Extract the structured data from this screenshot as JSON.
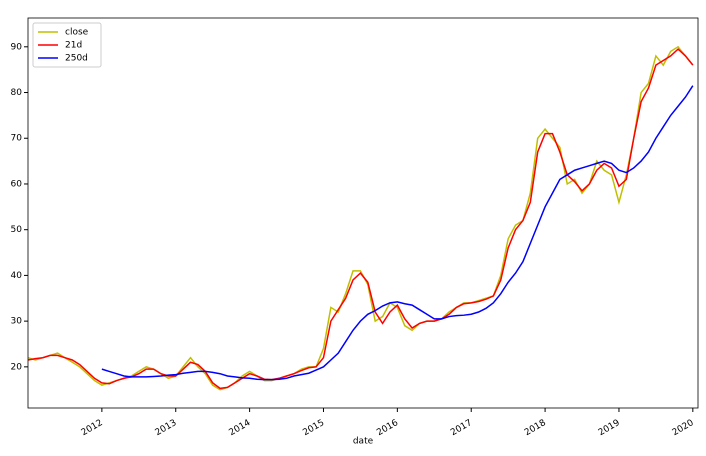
{
  "chart_data": {
    "type": "line",
    "xlabel": "date",
    "x": [
      2011,
      2011.1,
      2011.2,
      2011.3,
      2011.4,
      2011.5,
      2011.6,
      2011.7,
      2011.8,
      2011.9,
      2012,
      2012.1,
      2012.2,
      2012.3,
      2012.4,
      2012.5,
      2012.6,
      2012.7,
      2012.8,
      2012.9,
      2013,
      2013.1,
      2013.2,
      2013.3,
      2013.4,
      2013.5,
      2013.6,
      2013.7,
      2013.8,
      2013.9,
      2014,
      2014.1,
      2014.2,
      2014.3,
      2014.4,
      2014.5,
      2014.6,
      2014.7,
      2014.8,
      2014.9,
      2015,
      2015.1,
      2015.2,
      2015.3,
      2015.4,
      2015.5,
      2015.6,
      2015.7,
      2015.8,
      2015.9,
      2016,
      2016.1,
      2016.2,
      2016.3,
      2016.4,
      2016.5,
      2016.6,
      2016.7,
      2016.8,
      2016.9,
      2017,
      2017.1,
      2017.2,
      2017.3,
      2017.4,
      2017.5,
      2017.6,
      2017.7,
      2017.8,
      2017.9,
      2018,
      2018.1,
      2018.2,
      2018.3,
      2018.4,
      2018.5,
      2018.6,
      2018.7,
      2018.8,
      2018.9,
      2019,
      2019.1,
      2019.2,
      2019.3,
      2019.4,
      2019.5,
      2019.6,
      2019.7,
      2019.8,
      2019.9,
      2020
    ],
    "series": [
      {
        "name": "close",
        "color": "#bfbf00",
        "values": [
          22,
          21.5,
          22,
          22.5,
          23,
          22,
          21,
          20,
          18.5,
          17,
          16,
          16.5,
          17,
          17.5,
          18,
          19,
          20,
          19.5,
          18.5,
          17.5,
          18,
          20,
          22,
          20,
          18.5,
          16,
          15,
          15.5,
          16.5,
          18,
          19,
          18,
          17,
          17,
          17.5,
          18,
          18.5,
          19.5,
          20,
          20,
          24,
          33,
          32,
          36,
          41,
          41,
          38,
          30,
          31,
          34,
          33,
          29,
          28,
          29.5,
          30,
          30,
          30.5,
          32,
          33,
          34,
          34,
          34.5,
          35,
          35.5,
          40,
          48,
          51,
          52,
          58,
          70,
          72,
          70,
          68,
          60,
          61,
          58,
          60,
          65,
          63,
          62,
          56,
          62,
          70,
          80,
          82,
          88,
          86,
          89,
          90,
          88,
          86
        ]
      },
      {
        "name": "21d",
        "color": "#ff0000",
        "values": [
          21.5,
          21.8,
          22,
          22.5,
          22.5,
          22,
          21.5,
          20.5,
          19,
          17.5,
          16.5,
          16.3,
          17,
          17.5,
          17.8,
          18.5,
          19.5,
          19.5,
          18.5,
          18,
          18,
          19.5,
          21,
          20.5,
          19,
          16.5,
          15.3,
          15.5,
          16.5,
          17.5,
          18.5,
          18,
          17.3,
          17.2,
          17.5,
          18,
          18.5,
          19.2,
          19.8,
          20,
          22,
          30,
          32.5,
          35,
          39,
          40.5,
          38.5,
          32,
          29.5,
          32,
          33.5,
          30.5,
          28.5,
          29.5,
          30,
          30,
          30.5,
          31.5,
          33,
          33.8,
          34,
          34.3,
          34.8,
          35.5,
          39,
          46,
          50,
          52,
          56,
          67,
          71,
          71,
          67,
          62,
          60.5,
          58.5,
          60,
          63,
          64.5,
          63.5,
          59.5,
          61,
          70,
          78,
          81,
          86,
          87,
          88,
          89.5,
          88,
          86
        ]
      },
      {
        "name": "250d",
        "color": "#0000ff",
        "values": [
          null,
          null,
          null,
          null,
          null,
          null,
          null,
          null,
          null,
          null,
          19.5,
          19,
          18.5,
          18,
          17.8,
          17.8,
          17.8,
          17.9,
          18,
          18.2,
          18.3,
          18.6,
          18.8,
          19,
          19,
          18.8,
          18.5,
          18,
          17.8,
          17.6,
          17.5,
          17.3,
          17.2,
          17.2,
          17.3,
          17.5,
          18,
          18.3,
          18.6,
          19.3,
          20,
          21.5,
          23,
          25.5,
          28,
          30,
          31.5,
          32.3,
          33.3,
          34,
          34.2,
          33.8,
          33.5,
          32.5,
          31.5,
          30.5,
          30.5,
          31,
          31.2,
          31.3,
          31.5,
          32,
          32.8,
          34,
          36,
          38.5,
          40.5,
          43,
          47,
          51,
          55,
          58,
          61,
          62,
          63,
          63.5,
          64,
          64.5,
          65,
          64.5,
          63,
          62.5,
          63.5,
          65,
          67,
          70,
          72.5,
          75,
          77,
          79,
          81.5
        ]
      }
    ],
    "xlim": [
      2011,
      2020.07
    ],
    "xticks": [
      2012,
      2013,
      2014,
      2015,
      2016,
      2017,
      2018,
      2019,
      2020
    ],
    "ylim": [
      11,
      96.3
    ],
    "yticks": [
      20,
      30,
      40,
      50,
      60,
      70,
      80,
      90
    ],
    "legend": "upper left"
  }
}
